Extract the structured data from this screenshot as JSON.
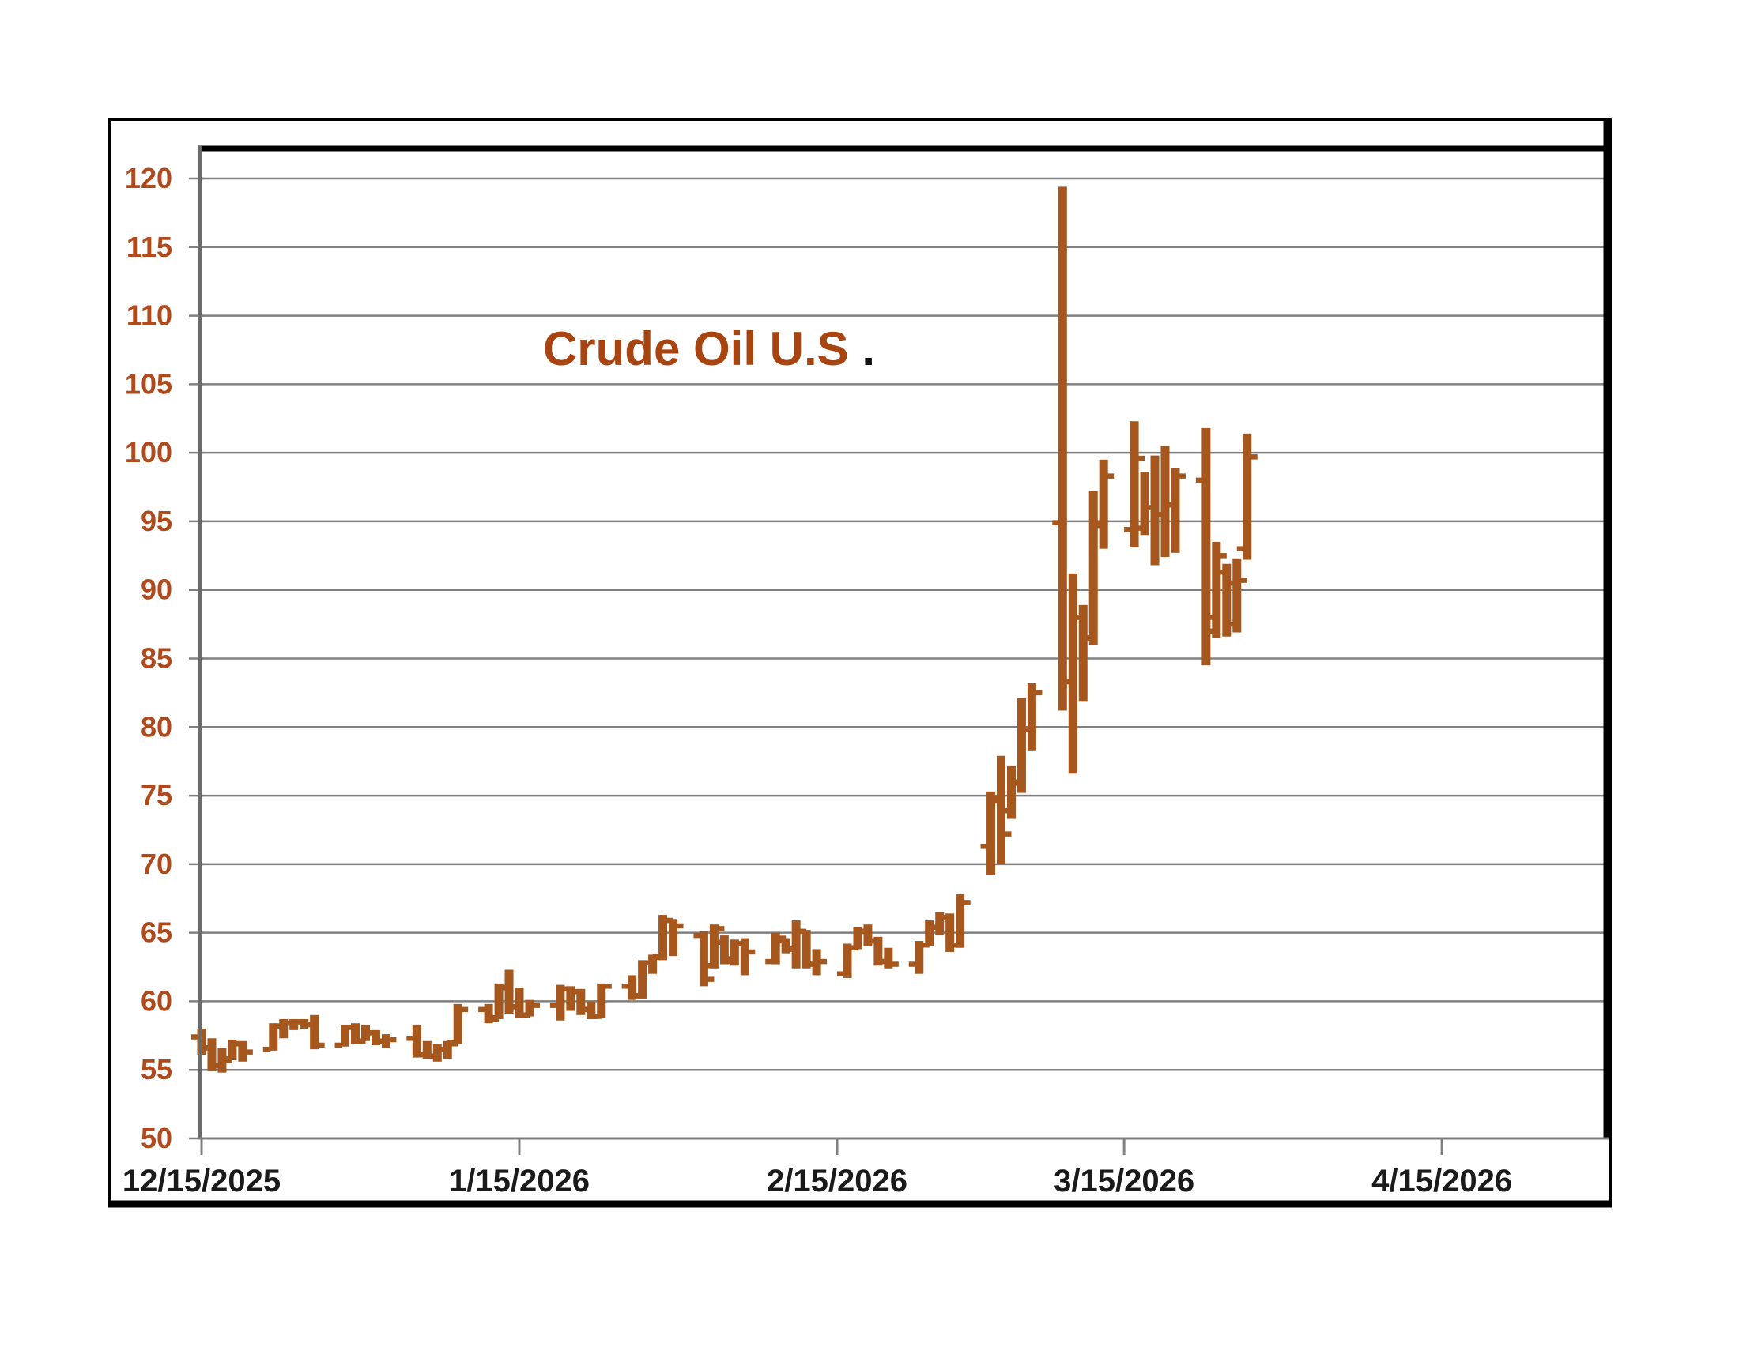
{
  "chart": {
    "title_main": "Crude Oil U.S",
    "title_period": ".",
    "colors": {
      "bar": "#A6571E",
      "y_label": "#B04A1C",
      "x_label": "#1a1a1a",
      "title": "#A8440F",
      "title_period": "#111111",
      "grid": "#808080",
      "tick": "#808080",
      "frame": "#000000",
      "plot_left_border": "#6b6b6b",
      "plot_bottom_border": "#7f7f7f",
      "background": "#ffffff"
    }
  },
  "chart_data": {
    "type": "bar",
    "subtype": "ohlc-bar",
    "title": "Crude Oil U.S.",
    "xlabel": "",
    "ylabel": "",
    "ylim": [
      50,
      122
    ],
    "y_ticks": [
      120,
      115,
      110,
      105,
      100,
      95,
      90,
      85,
      80,
      75,
      70,
      65,
      60,
      55,
      50
    ],
    "x_ticks": [
      "12/15/2025",
      "1/15/2026",
      "2/15/2026",
      "3/15/2026",
      "4/15/2026"
    ],
    "grid": "horizontal",
    "legend": "none",
    "columns": [
      "date",
      "open",
      "high",
      "low",
      "close"
    ],
    "series": [
      [
        "12/15/2025",
        57.4,
        58.0,
        56.1,
        56.6
      ],
      [
        "12/16/2025",
        56.6,
        57.3,
        54.9,
        55.3
      ],
      [
        "12/17/2025",
        55.3,
        56.6,
        54.8,
        55.7
      ],
      [
        "12/18/2025",
        55.8,
        57.2,
        55.7,
        56.9
      ],
      [
        "12/19/2025",
        56.9,
        57.1,
        55.6,
        56.3
      ],
      [
        "12/22/2025",
        56.5,
        58.4,
        56.4,
        58.2
      ],
      [
        "12/23/2025",
        58.2,
        58.7,
        57.3,
        58.4
      ],
      [
        "12/24/2025",
        58.4,
        58.7,
        57.9,
        58.5
      ],
      [
        "12/25/2025",
        58.5,
        58.7,
        58.0,
        58.3
      ],
      [
        "12/26/2025",
        58.3,
        59.0,
        56.5,
        56.8
      ],
      [
        "12/29/2025",
        56.8,
        58.3,
        56.7,
        58.1
      ],
      [
        "12/30/2025",
        58.1,
        58.4,
        56.9,
        57.1
      ],
      [
        "12/31/2025",
        57.1,
        58.3,
        57.1,
        57.7
      ],
      [
        "1/1/2026",
        57.7,
        57.9,
        56.8,
        57.1
      ],
      [
        "1/2/2026",
        57.1,
        57.6,
        56.6,
        57.2
      ],
      [
        "1/5/2026",
        57.3,
        58.3,
        55.9,
        56.1
      ],
      [
        "1/6/2026",
        56.1,
        57.1,
        55.8,
        56.0
      ],
      [
        "1/7/2026",
        56.0,
        56.9,
        55.6,
        56.5
      ],
      [
        "1/8/2026",
        56.5,
        57.1,
        55.8,
        56.9
      ],
      [
        "1/9/2026",
        57.0,
        59.8,
        56.9,
        59.4
      ],
      [
        "1/12/2026",
        59.4,
        59.8,
        58.4,
        58.7
      ],
      [
        "1/13/2026",
        58.8,
        61.3,
        58.7,
        61.0
      ],
      [
        "1/14/2026",
        61.0,
        62.3,
        59.1,
        59.6
      ],
      [
        "1/15/2026",
        59.6,
        61.0,
        58.8,
        59.0
      ],
      [
        "1/16/2026",
        59.0,
        60.1,
        58.9,
        59.7
      ],
      [
        "1/19/2026",
        59.7,
        61.2,
        58.6,
        60.9
      ],
      [
        "1/20/2026",
        60.9,
        61.1,
        59.3,
        60.7
      ],
      [
        "1/21/2026",
        60.7,
        60.9,
        59.0,
        59.4
      ],
      [
        "1/22/2026",
        59.4,
        60.0,
        58.7,
        58.9
      ],
      [
        "1/23/2026",
        58.9,
        61.3,
        58.8,
        61.1
      ],
      [
        "1/26/2026",
        61.1,
        61.9,
        60.1,
        60.4
      ],
      [
        "1/27/2026",
        60.4,
        63.0,
        60.2,
        62.8
      ],
      [
        "1/28/2026",
        62.8,
        63.4,
        62.0,
        63.2
      ],
      [
        "1/29/2026",
        63.3,
        66.3,
        63.0,
        65.9
      ],
      [
        "1/30/2026",
        65.9,
        66.0,
        63.3,
        65.5
      ],
      [
        "2/2/2026",
        64.8,
        65.1,
        61.1,
        61.6
      ],
      [
        "2/3/2026",
        62.6,
        65.6,
        62.4,
        65.3
      ],
      [
        "2/4/2026",
        64.3,
        64.8,
        62.7,
        63.1
      ],
      [
        "2/5/2026",
        62.9,
        64.5,
        62.6,
        64.2
      ],
      [
        "2/6/2026",
        64.2,
        64.6,
        61.9,
        63.6
      ],
      [
        "2/9/2026",
        62.9,
        65.0,
        62.7,
        64.6
      ],
      [
        "2/10/2026",
        64.4,
        64.6,
        63.5,
        63.8
      ],
      [
        "2/11/2026",
        63.8,
        65.9,
        62.4,
        65.1
      ],
      [
        "2/12/2026",
        65.1,
        65.2,
        62.4,
        62.7
      ],
      [
        "2/13/2026",
        62.7,
        63.8,
        61.9,
        62.9
      ],
      [
        "2/16/2026",
        62.0,
        64.2,
        61.7,
        63.9
      ],
      [
        "2/17/2026",
        63.9,
        65.4,
        63.8,
        65.1
      ],
      [
        "2/18/2026",
        65.1,
        65.6,
        64.0,
        64.4
      ],
      [
        "2/19/2026",
        64.4,
        64.7,
        62.6,
        62.9
      ],
      [
        "2/20/2026",
        62.9,
        63.9,
        62.4,
        62.7
      ],
      [
        "2/23/2026",
        62.7,
        64.4,
        62.0,
        64.1
      ],
      [
        "2/24/2026",
        64.1,
        65.9,
        64.0,
        65.4
      ],
      [
        "2/25/2026",
        65.4,
        66.5,
        64.8,
        66.1
      ],
      [
        "2/26/2026",
        66.1,
        66.4,
        63.6,
        64.1
      ],
      [
        "2/27/2026",
        64.1,
        67.8,
        63.9,
        67.2
      ],
      [
        "3/2/2026",
        71.3,
        75.3,
        69.2,
        74.8
      ],
      [
        "3/3/2026",
        74.6,
        77.9,
        70.0,
        72.2
      ],
      [
        "3/4/2026",
        73.9,
        77.2,
        73.3,
        75.9
      ],
      [
        "3/5/2026",
        76.0,
        82.1,
        75.2,
        79.8
      ],
      [
        "3/6/2026",
        79.8,
        83.2,
        78.3,
        82.5
      ],
      [
        "3/9/2026",
        94.9,
        119.4,
        81.2,
        83.3
      ],
      [
        "3/10/2026",
        83.3,
        91.2,
        76.6,
        88.0
      ],
      [
        "3/11/2026",
        88.0,
        88.9,
        81.9,
        86.5
      ],
      [
        "3/12/2026",
        86.5,
        97.2,
        86.0,
        94.7
      ],
      [
        "3/13/2026",
        94.9,
        99.5,
        93.0,
        98.3
      ],
      [
        "3/16/2026",
        94.4,
        102.3,
        93.1,
        99.6
      ],
      [
        "3/17/2026",
        94.5,
        98.6,
        94.0,
        96.0
      ],
      [
        "3/18/2026",
        96.0,
        99.8,
        91.8,
        95.5
      ],
      [
        "3/19/2026",
        95.5,
        100.5,
        92.4,
        96.2
      ],
      [
        "3/20/2026",
        96.2,
        98.9,
        92.7,
        98.3
      ],
      [
        "3/23/2026",
        98.0,
        101.8,
        84.5,
        87.0
      ],
      [
        "3/24/2026",
        88.0,
        93.5,
        86.5,
        92.5
      ],
      [
        "3/25/2026",
        91.3,
        91.9,
        86.6,
        90.5
      ],
      [
        "3/26/2026",
        87.5,
        92.3,
        86.9,
        90.7
      ],
      [
        "3/27/2026",
        93.0,
        101.4,
        92.2,
        99.7
      ]
    ]
  }
}
